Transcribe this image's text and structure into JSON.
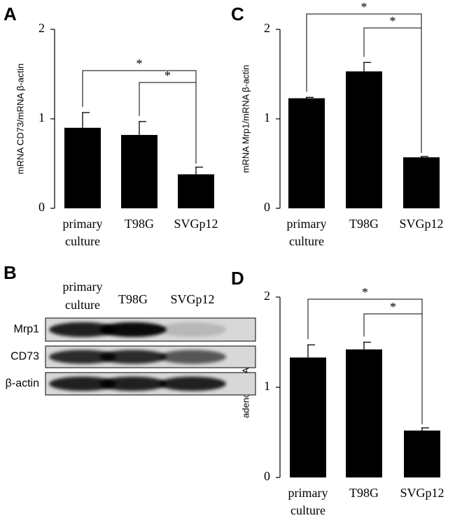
{
  "chart_data": [
    {
      "type": "bar",
      "panel": "A",
      "ylabel": "mRNA CD73/mRNA β-actin",
      "categories": [
        "primary culture",
        "T98G",
        "SVGp12"
      ],
      "values": [
        0.9,
        0.82,
        0.38
      ],
      "errors": [
        0.17,
        0.15,
        0.08
      ],
      "color": "#000000",
      "ylim": [
        0,
        2
      ],
      "yticks": [
        0,
        1,
        2
      ],
      "annotations": [
        {
          "from": 0,
          "to": 2,
          "label": "*"
        },
        {
          "from": 1,
          "to": 2,
          "label": "*"
        }
      ]
    },
    {
      "type": "bar",
      "panel": "C",
      "ylabel": "mRNA Mrp1/mRNA β-actin",
      "categories": [
        "primary culture",
        "T98G",
        "SVGp12"
      ],
      "values": [
        1.23,
        1.53,
        0.57
      ],
      "errors": [
        0.01,
        0.1,
        0.01
      ],
      "color": "#000000",
      "ylim": [
        0,
        2
      ],
      "yticks": [
        0,
        1,
        2
      ],
      "annotations": [
        {
          "from": 0,
          "to": 2,
          "label": "*"
        },
        {
          "from": 1,
          "to": 2,
          "label": "*"
        }
      ]
    },
    {
      "type": "bar",
      "panel": "D",
      "ylabel": "adenosine/ATP",
      "categories": [
        "primary culture",
        "T98G",
        "SVGp12"
      ],
      "values": [
        1.33,
        1.42,
        0.52
      ],
      "errors": [
        0.14,
        0.08,
        0.03
      ],
      "color": "#000000",
      "ylim": [
        0,
        2
      ],
      "yticks": [
        0,
        1,
        2
      ],
      "annotations": [
        {
          "from": 0,
          "to": 2,
          "label": "*"
        },
        {
          "from": 1,
          "to": 2,
          "label": "*"
        }
      ]
    }
  ],
  "blot": {
    "panel": "B",
    "columns": [
      "primary culture",
      "T98G",
      "SVGp12"
    ],
    "rows": [
      "Mrp1",
      "CD73",
      "β-actin"
    ]
  }
}
